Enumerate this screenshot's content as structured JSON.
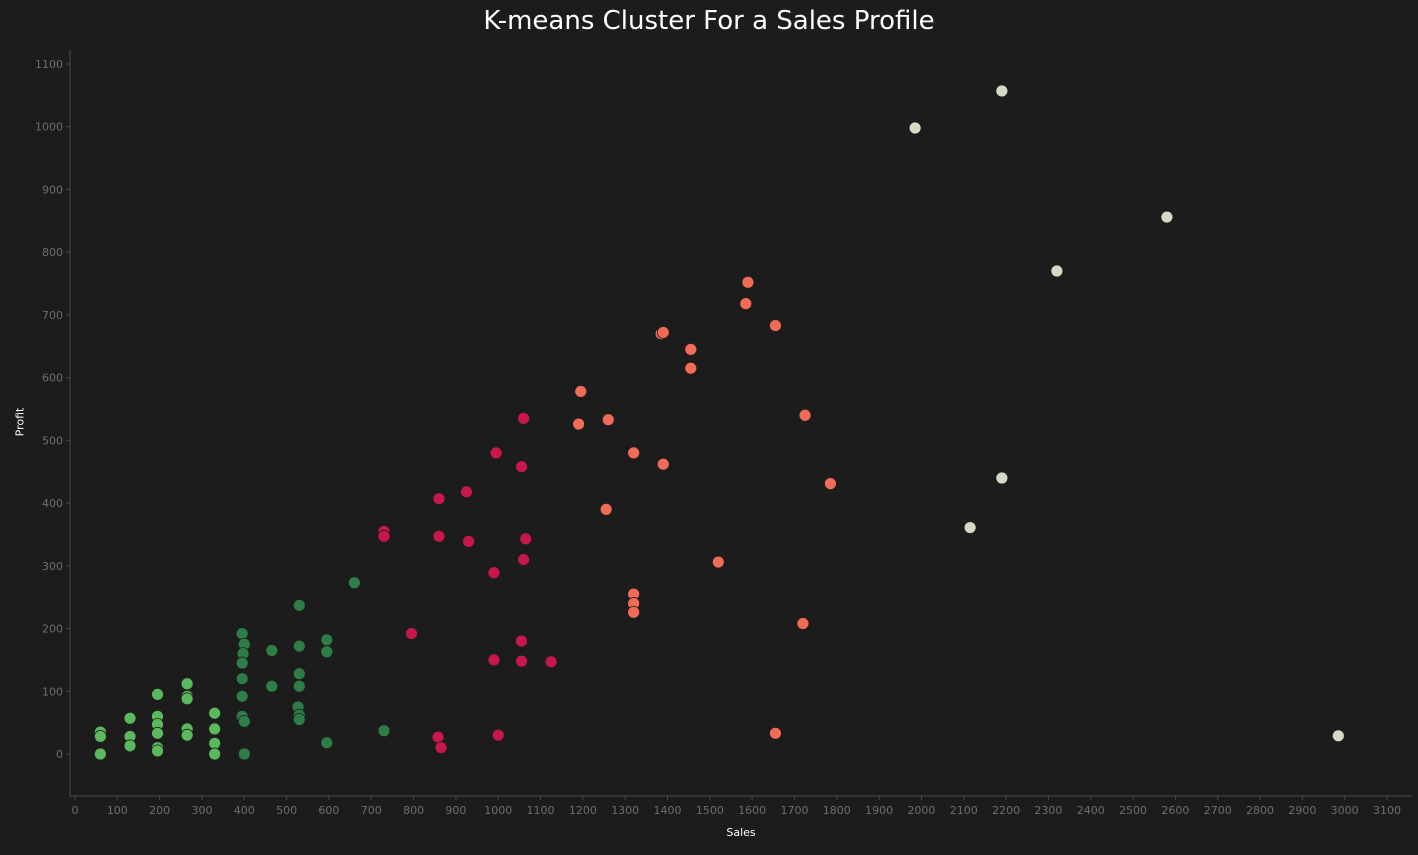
{
  "chart_data": {
    "type": "scatter",
    "title": "K-means Cluster For a Sales Profile",
    "xlabel": "Sales",
    "ylabel": "Profit",
    "xlim": [
      0,
      3180
    ],
    "ylim": [
      -65,
      1120
    ],
    "x_ticks": [
      0,
      100,
      200,
      300,
      400,
      500,
      600,
      700,
      800,
      900,
      1000,
      1100,
      1200,
      1300,
      1400,
      1500,
      1600,
      1700,
      1800,
      1900,
      2000,
      2100,
      2200,
      2300,
      2400,
      2500,
      2600,
      2700,
      2800,
      2900,
      3000,
      3100
    ],
    "y_ticks": [
      0,
      100,
      200,
      300,
      400,
      500,
      600,
      700,
      800,
      900,
      1000,
      1100
    ],
    "grid": false,
    "series": [
      {
        "color": "#5cb85c",
        "points": [
          [
            60,
            35
          ],
          [
            60,
            28
          ],
          [
            60,
            0
          ],
          [
            130,
            57
          ],
          [
            130,
            28
          ],
          [
            130,
            13
          ],
          [
            195,
            95
          ],
          [
            195,
            60
          ],
          [
            195,
            47
          ],
          [
            195,
            33
          ],
          [
            195,
            10
          ],
          [
            195,
            5
          ],
          [
            265,
            112
          ],
          [
            265,
            92
          ],
          [
            265,
            88
          ],
          [
            265,
            40
          ],
          [
            265,
            30
          ],
          [
            330,
            65
          ],
          [
            330,
            40
          ],
          [
            330,
            17
          ],
          [
            330,
            0
          ]
        ]
      },
      {
        "color": "#2e7d46",
        "points": [
          [
            395,
            192
          ],
          [
            400,
            175
          ],
          [
            397,
            160
          ],
          [
            395,
            145
          ],
          [
            395,
            120
          ],
          [
            395,
            92
          ],
          [
            395,
            60
          ],
          [
            400,
            52
          ],
          [
            400,
            0
          ],
          [
            465,
            165
          ],
          [
            465,
            108
          ],
          [
            530,
            237
          ],
          [
            530,
            172
          ],
          [
            530,
            128
          ],
          [
            530,
            108
          ],
          [
            527,
            75
          ],
          [
            530,
            62
          ],
          [
            530,
            55
          ],
          [
            595,
            182
          ],
          [
            595,
            163
          ],
          [
            595,
            18
          ],
          [
            660,
            273
          ],
          [
            730,
            37
          ]
        ]
      },
      {
        "color": "#c8174a",
        "points": [
          [
            730,
            355
          ],
          [
            730,
            347
          ],
          [
            795,
            192
          ],
          [
            860,
            407
          ],
          [
            860,
            347
          ],
          [
            858,
            27
          ],
          [
            865,
            10
          ],
          [
            925,
            418
          ],
          [
            930,
            339
          ],
          [
            995,
            480
          ],
          [
            990,
            289
          ],
          [
            990,
            150
          ],
          [
            1000,
            30
          ],
          [
            1060,
            535
          ],
          [
            1055,
            458
          ],
          [
            1065,
            343
          ],
          [
            1060,
            310
          ],
          [
            1055,
            180
          ],
          [
            1055,
            148
          ],
          [
            1125,
            147
          ]
        ]
      },
      {
        "color": "#f26b57",
        "points": [
          [
            1190,
            526
          ],
          [
            1195,
            578
          ],
          [
            1255,
            390
          ],
          [
            1260,
            533
          ],
          [
            1320,
            480
          ],
          [
            1320,
            255
          ],
          [
            1320,
            240
          ],
          [
            1320,
            226
          ],
          [
            1385,
            670
          ],
          [
            1390,
            672
          ],
          [
            1390,
            462
          ],
          [
            1455,
            645
          ],
          [
            1455,
            615
          ],
          [
            1520,
            306
          ],
          [
            1585,
            718
          ],
          [
            1590,
            752
          ],
          [
            1655,
            683
          ],
          [
            1655,
            33
          ],
          [
            1720,
            208
          ],
          [
            1725,
            540
          ],
          [
            1785,
            431
          ]
        ]
      },
      {
        "color": "#d2dbc5",
        "points": [
          [
            1985,
            998
          ],
          [
            2190,
            1057
          ],
          [
            2115,
            361
          ],
          [
            2190,
            440
          ],
          [
            2320,
            770
          ],
          [
            2580,
            856
          ],
          [
            2985,
            29
          ]
        ]
      }
    ]
  }
}
